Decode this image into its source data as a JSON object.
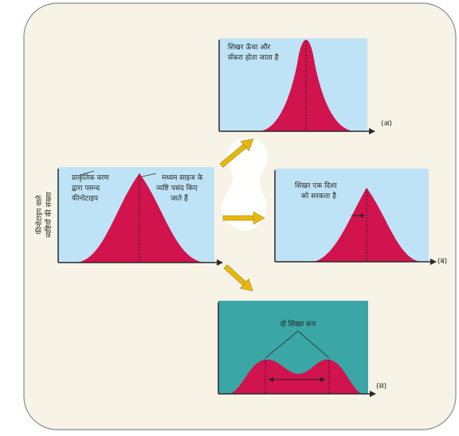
{
  "colors": {
    "outer_bg": "#f7f3e6",
    "outer_border": "#8c8c8c",
    "panel_light": "#bfe3f6",
    "panel_teal": "#3aa6a5",
    "curve_fill": "#d1134e",
    "arrow_fill": "#e6b80f",
    "axis": "#2a2a2a"
  },
  "y_axis_label": {
    "line1": "फीनोटाइप वाले",
    "line2": "व्यष्टियों की संख्या"
  },
  "center_panel": {
    "left_note": [
      "प्राकृतिक वरण",
      "द्वारा पसन्द",
      "फीनोटाइप"
    ],
    "right_note": [
      "मध्यम साइज के",
      "व्यष्टि पसंद किए",
      "जाते हैं"
    ]
  },
  "panel_a": {
    "tag": "(अ)",
    "note": [
      "शिखर ऊँचा और",
      "सँकरा होता जाता है"
    ]
  },
  "panel_b": {
    "tag": "(ब)",
    "note": [
      "शिखर एक दिशा",
      "को सरकता है"
    ]
  },
  "panel_c": {
    "tag": "(स)",
    "note": "दो शिखर रूप"
  }
}
